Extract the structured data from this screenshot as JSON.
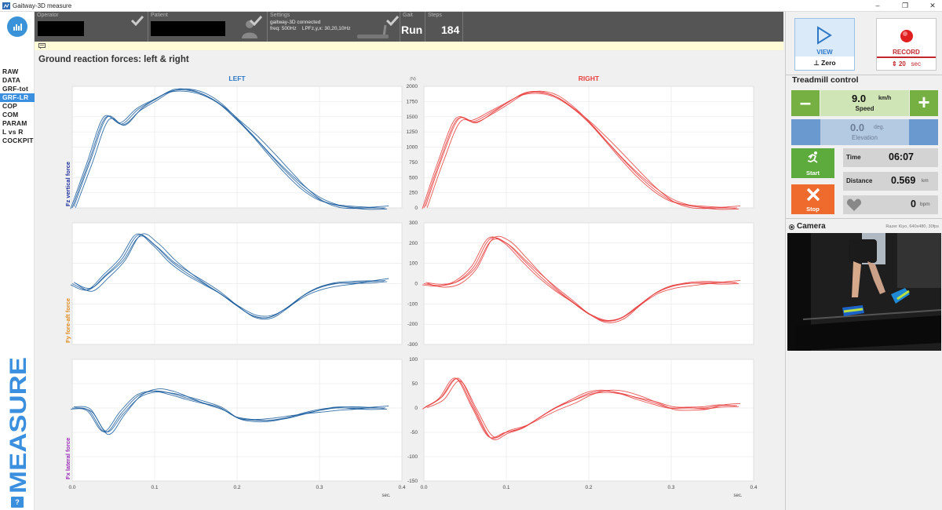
{
  "window": {
    "title": "Gaitway-3D measure",
    "controls": [
      "–",
      "❐",
      "✕"
    ]
  },
  "nav": {
    "items": [
      "RAW",
      "DATA",
      "GRF-tot",
      "GRF-LR",
      "COP",
      "COM",
      "PARAM",
      "L vs R",
      "COCKPIT"
    ],
    "active": "GRF-LR",
    "mode_label": "MEASURE",
    "help_label": "?"
  },
  "status": {
    "operator_label": "Operator",
    "patient_label": "Patient",
    "settings_label": "Settings",
    "settings_line1": "gaitway-3D connected",
    "settings_line2": "freq: 500Hz    LPFz,y,x: 30,20,10Hz",
    "gait_label": "Gait",
    "gait_value": "Run",
    "steps_label": "Steps",
    "steps_value": "184"
  },
  "page_title": "Ground reaction forces: left & right",
  "charts": {
    "left_title": "LEFT",
    "right_title": "RIGHT",
    "unit_label": "(N)",
    "x_unit": "sec.",
    "x_ticks": [
      "0.0",
      "0.1",
      "0.2",
      "0.3",
      "0.4"
    ],
    "colors": {
      "left": "#1f5f9e",
      "right": "#e8403f",
      "fz": "#1d2f9e",
      "fy": "#e08a1e",
      "fx": "#9b2ab8"
    }
  },
  "chart_data": [
    {
      "type": "line",
      "title": "Fz vertical force",
      "ylabel": "Fz vertical force",
      "xlabel": "sec.",
      "ylim": [
        0,
        2000
      ],
      "xlim": [
        0,
        0.4
      ],
      "y_ticks": [
        "0",
        "250",
        "500",
        "750",
        "1000",
        "1250",
        "1500",
        "1750",
        "2000"
      ],
      "x": [
        0,
        0.02,
        0.04,
        0.06,
        0.08,
        0.1,
        0.12,
        0.14,
        0.16,
        0.18,
        0.2,
        0.22,
        0.24,
        0.26,
        0.28,
        0.3,
        0.32,
        0.34,
        0.36,
        0.38
      ],
      "series": [
        {
          "side": "left",
          "values": [
            0,
            750,
            1480,
            1380,
            1620,
            1780,
            1920,
            1935,
            1860,
            1700,
            1450,
            1180,
            880,
            590,
            330,
            140,
            45,
            10,
            0,
            0
          ]
        },
        {
          "side": "right",
          "values": [
            0,
            800,
            1450,
            1420,
            1560,
            1720,
            1870,
            1900,
            1830,
            1650,
            1410,
            1120,
            820,
            540,
            300,
            120,
            40,
            10,
            0,
            0
          ]
        }
      ]
    },
    {
      "type": "line",
      "title": "Fy fore-aft force",
      "ylabel": "Fy fore-aft force",
      "xlabel": "sec.",
      "ylim": [
        -300,
        300
      ],
      "xlim": [
        0,
        0.4
      ],
      "y_ticks": [
        "-300",
        "-200",
        "-100",
        "0",
        "100",
        "200",
        "300"
      ],
      "x": [
        0,
        0.02,
        0.04,
        0.06,
        0.08,
        0.1,
        0.12,
        0.14,
        0.16,
        0.18,
        0.2,
        0.22,
        0.24,
        0.26,
        0.28,
        0.3,
        0.32,
        0.34,
        0.36,
        0.38
      ],
      "series": [
        {
          "side": "left",
          "values": [
            0,
            -30,
            40,
            120,
            240,
            190,
            110,
            50,
            0,
            -50,
            -110,
            -160,
            -165,
            -120,
            -60,
            -20,
            0,
            5,
            10,
            15
          ]
        },
        {
          "side": "right",
          "values": [
            0,
            -10,
            10,
            80,
            220,
            200,
            120,
            40,
            -30,
            -90,
            -150,
            -185,
            -170,
            -110,
            -50,
            -15,
            0,
            5,
            5,
            5
          ]
        }
      ]
    },
    {
      "type": "line",
      "title": "Fx lateral force",
      "ylabel": "Fx lateral force",
      "xlabel": "sec.",
      "ylim": [
        -150,
        100
      ],
      "xlim": [
        0,
        0.4
      ],
      "y_ticks": [
        "-150",
        "-100",
        "-50",
        "0",
        "50",
        "100"
      ],
      "x": [
        0,
        0.02,
        0.04,
        0.06,
        0.08,
        0.1,
        0.12,
        0.14,
        0.16,
        0.18,
        0.2,
        0.22,
        0.24,
        0.26,
        0.28,
        0.3,
        0.32,
        0.34,
        0.36,
        0.38
      ],
      "series": [
        {
          "side": "left",
          "values": [
            0,
            -5,
            -50,
            -10,
            25,
            35,
            30,
            20,
            10,
            0,
            -20,
            -25,
            -25,
            -20,
            -12,
            -5,
            0,
            0,
            0,
            0
          ]
        },
        {
          "side": "right",
          "values": [
            0,
            20,
            60,
            0,
            -60,
            -50,
            -40,
            -20,
            0,
            15,
            30,
            35,
            30,
            20,
            10,
            0,
            0,
            0,
            5,
            5
          ]
        }
      ]
    }
  ],
  "record": {
    "view_label": "VIEW",
    "zero_label": "Zero",
    "record_label": "RECORD",
    "record_seconds": "20",
    "record_unit": "sec"
  },
  "treadmill": {
    "title": "Treadmill control",
    "speed_value": "9.0",
    "speed_unit": "km/h",
    "speed_label": "Speed",
    "elevation_value": "0.0",
    "elevation_unit": "deg.",
    "elevation_label": "Elevation",
    "start_label": "Start",
    "stop_label": "Stop",
    "time_label": "Time",
    "time_value": "06:07",
    "distance_label": "Distance",
    "distance_value": "0.569",
    "distance_unit": "km",
    "heart_value": "0",
    "heart_unit": "bpm"
  },
  "camera": {
    "title": "Camera",
    "info": "Razer Kiyo, 640x480, 30fps"
  }
}
